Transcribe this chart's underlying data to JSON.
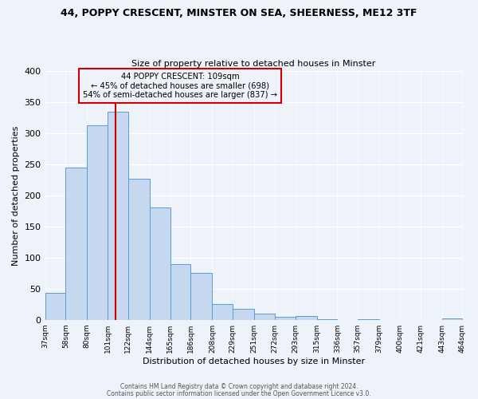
{
  "title1": "44, POPPY CRESCENT, MINSTER ON SEA, SHEERNESS, ME12 3TF",
  "title2": "Size of property relative to detached houses in Minster",
  "xlabel": "Distribution of detached houses by size in Minster",
  "ylabel": "Number of detached properties",
  "bin_labels": [
    "37sqm",
    "58sqm",
    "80sqm",
    "101sqm",
    "122sqm",
    "144sqm",
    "165sqm",
    "186sqm",
    "208sqm",
    "229sqm",
    "251sqm",
    "272sqm",
    "293sqm",
    "315sqm",
    "336sqm",
    "357sqm",
    "379sqm",
    "400sqm",
    "421sqm",
    "443sqm",
    "464sqm"
  ],
  "bar_heights": [
    43,
    245,
    313,
    335,
    227,
    180,
    90,
    75,
    25,
    17,
    10,
    5,
    6,
    1,
    0,
    1,
    0,
    0,
    0,
    2
  ],
  "bar_color": "#c5d8f0",
  "bar_edge_color": "#5b9bd5",
  "vline_x": 109,
  "bin_edges": [
    37,
    58,
    80,
    101,
    122,
    144,
    165,
    186,
    208,
    229,
    251,
    272,
    293,
    315,
    336,
    357,
    379,
    400,
    421,
    443,
    464
  ],
  "ylim": [
    0,
    400
  ],
  "yticks": [
    0,
    50,
    100,
    150,
    200,
    250,
    300,
    350,
    400
  ],
  "annotation_title": "44 POPPY CRESCENT: 109sqm",
  "annotation_line1": "← 45% of detached houses are smaller (698)",
  "annotation_line2": "54% of semi-detached houses are larger (837) →",
  "vline_color": "#cc0000",
  "annotation_box_color": "#cc0000",
  "footer1": "Contains HM Land Registry data © Crown copyright and database right 2024.",
  "footer2": "Contains public sector information licensed under the Open Government Licence v3.0.",
  "background_color": "#eef2f9",
  "grid_color": "#ffffff"
}
